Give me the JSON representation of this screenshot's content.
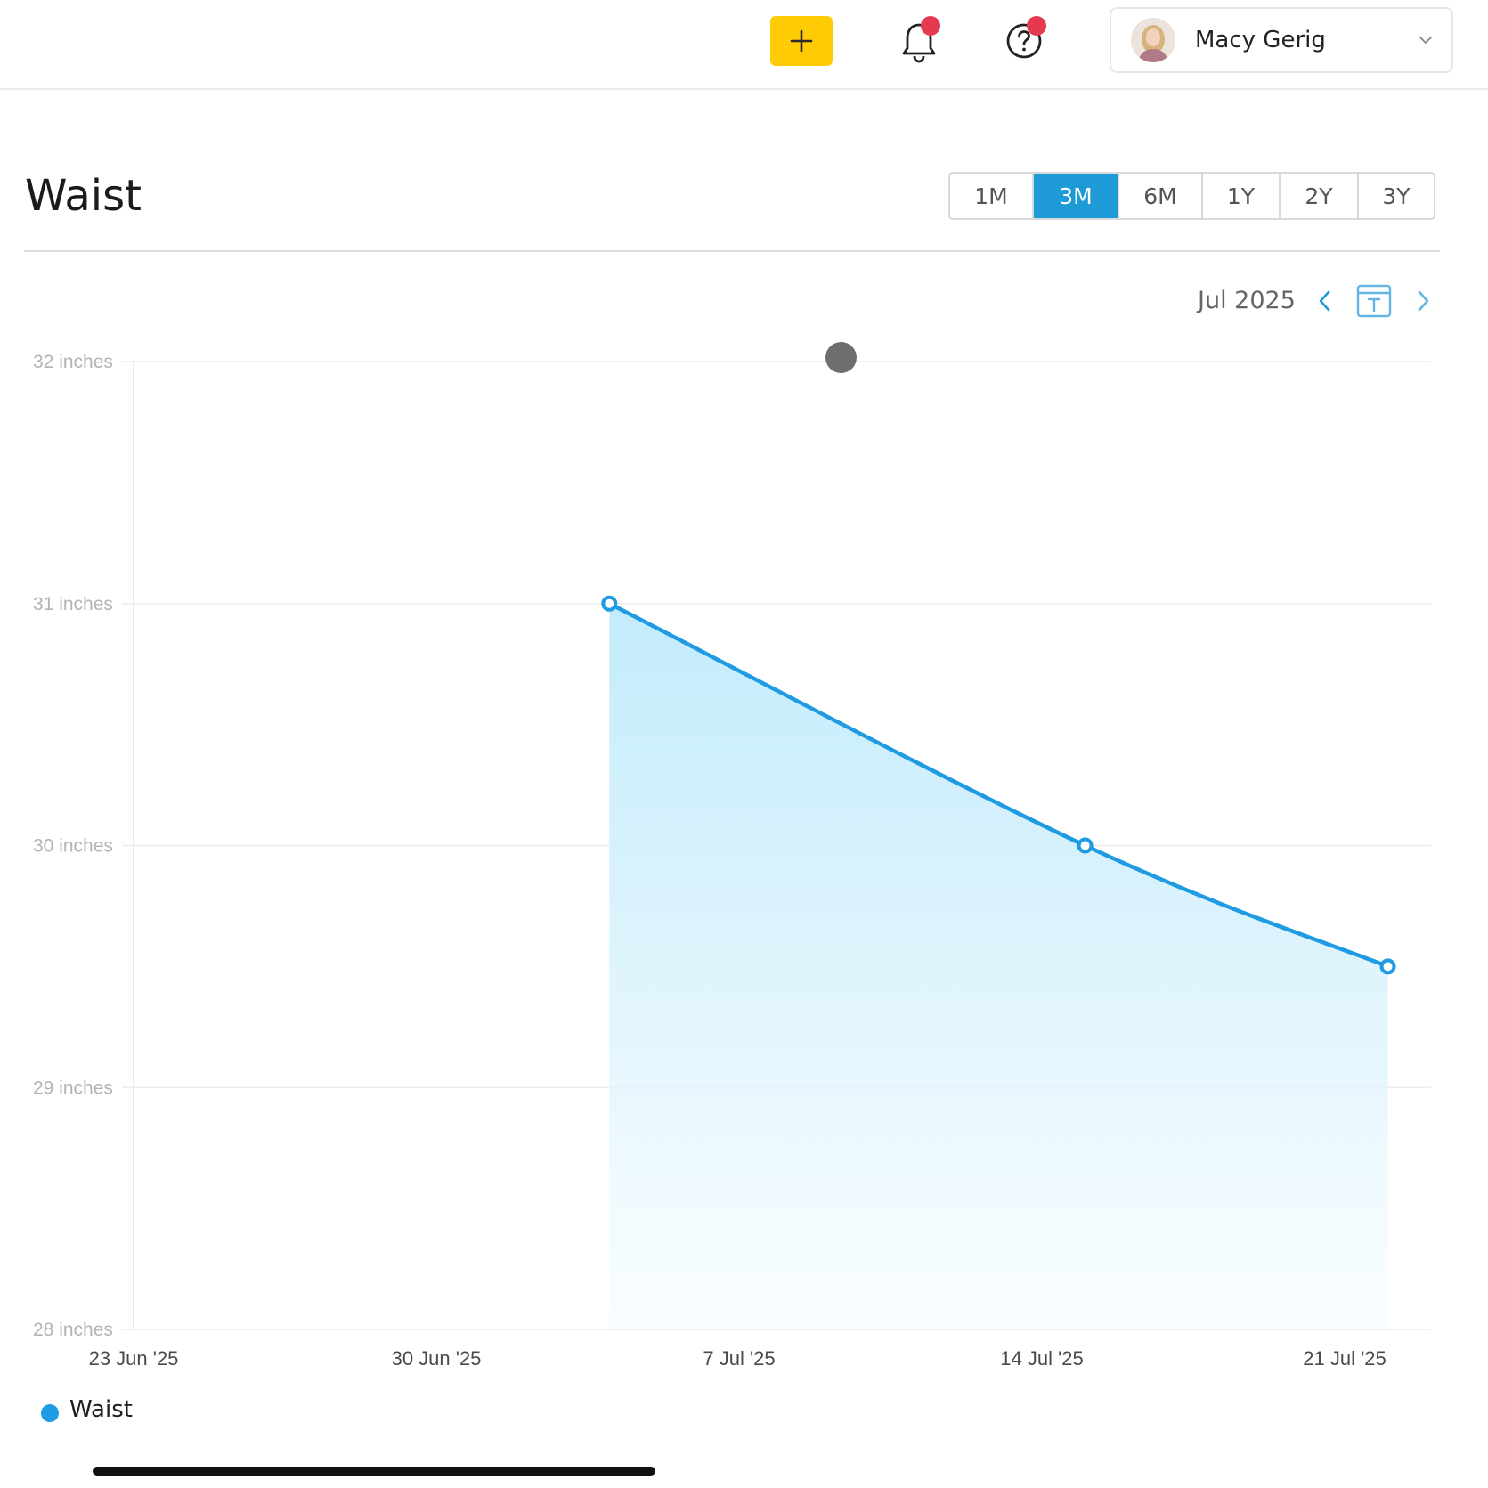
{
  "header": {
    "user_name": "Macy Gerig",
    "accent_color": "#ffcb05",
    "icons": [
      "plus-icon",
      "bell-icon",
      "help-icon",
      "chevron-down-icon"
    ]
  },
  "page": {
    "title": "Waist",
    "ranges": [
      "1M",
      "3M",
      "6M",
      "1Y",
      "2Y",
      "3Y"
    ],
    "active_range": "3M",
    "month_label": "Jul 2025",
    "nav_icons": [
      "chevron-left-icon",
      "calendar-today-icon",
      "chevron-right-icon"
    ]
  },
  "chart_data": {
    "type": "area",
    "xlabel": "",
    "ylabel": "",
    "x_ticks": [
      "23 Jun '25",
      "30 Jun '25",
      "7 Jul '25",
      "14 Jul '25",
      "21 Jul '25"
    ],
    "y_ticks": [
      "28 inches",
      "29 inches",
      "30 inches",
      "31 inches",
      "32 inches"
    ],
    "ylim": [
      28,
      32
    ],
    "xlim": [
      "2025-06-23",
      "2025-07-24"
    ],
    "series": [
      {
        "name": "Waist",
        "color": "#1f9be3",
        "points": [
          {
            "x": "2025-07-04",
            "y": 31.0
          },
          {
            "x": "2025-07-15",
            "y": 30.0
          },
          {
            "x": "2025-07-22",
            "y": 29.5
          }
        ]
      }
    ],
    "grid": true,
    "legend": "bottom-left"
  }
}
